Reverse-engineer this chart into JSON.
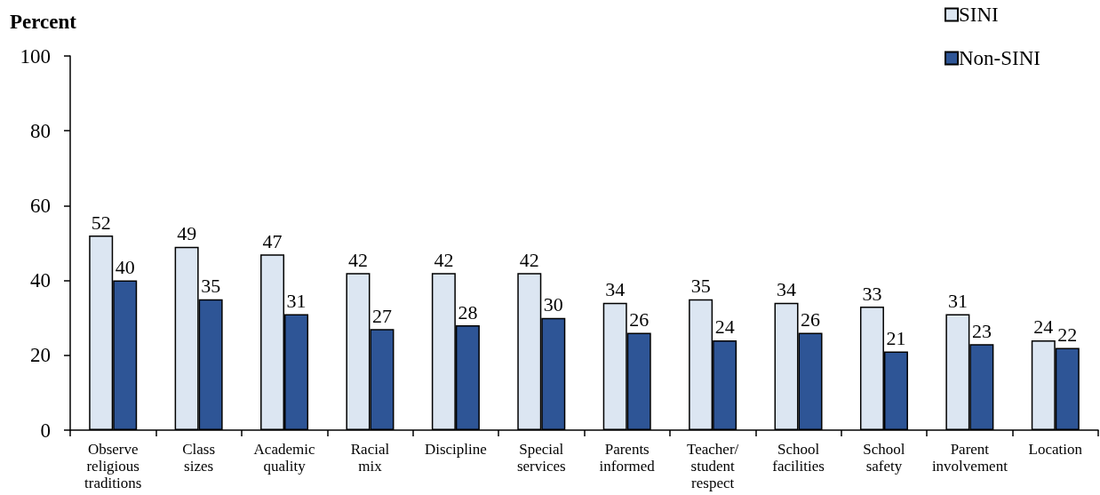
{
  "chart_data": {
    "type": "bar",
    "ylabel": "Percent",
    "categories": [
      "Observe religious traditions",
      "Class sizes",
      "Academic quality",
      "Racial mix",
      "Discipline",
      "Special services",
      "Parents informed",
      "Teacher/student respect",
      "School facilities",
      "School safety",
      "Parent involvement",
      "Location"
    ],
    "series": [
      {
        "name": "SINI",
        "color": "#dce6f2",
        "values": [
          52,
          49,
          47,
          42,
          42,
          42,
          34,
          35,
          34,
          33,
          31,
          24
        ]
      },
      {
        "name": "Non-SINI",
        "color": "#2e5596",
        "values": [
          40,
          35,
          31,
          27,
          28,
          30,
          26,
          24,
          26,
          21,
          23,
          22
        ]
      }
    ],
    "ylim": [
      0,
      100
    ],
    "yticks": [
      0,
      20,
      40,
      60,
      80,
      100
    ],
    "data_labels": true,
    "legend": "top right",
    "grid": false
  }
}
